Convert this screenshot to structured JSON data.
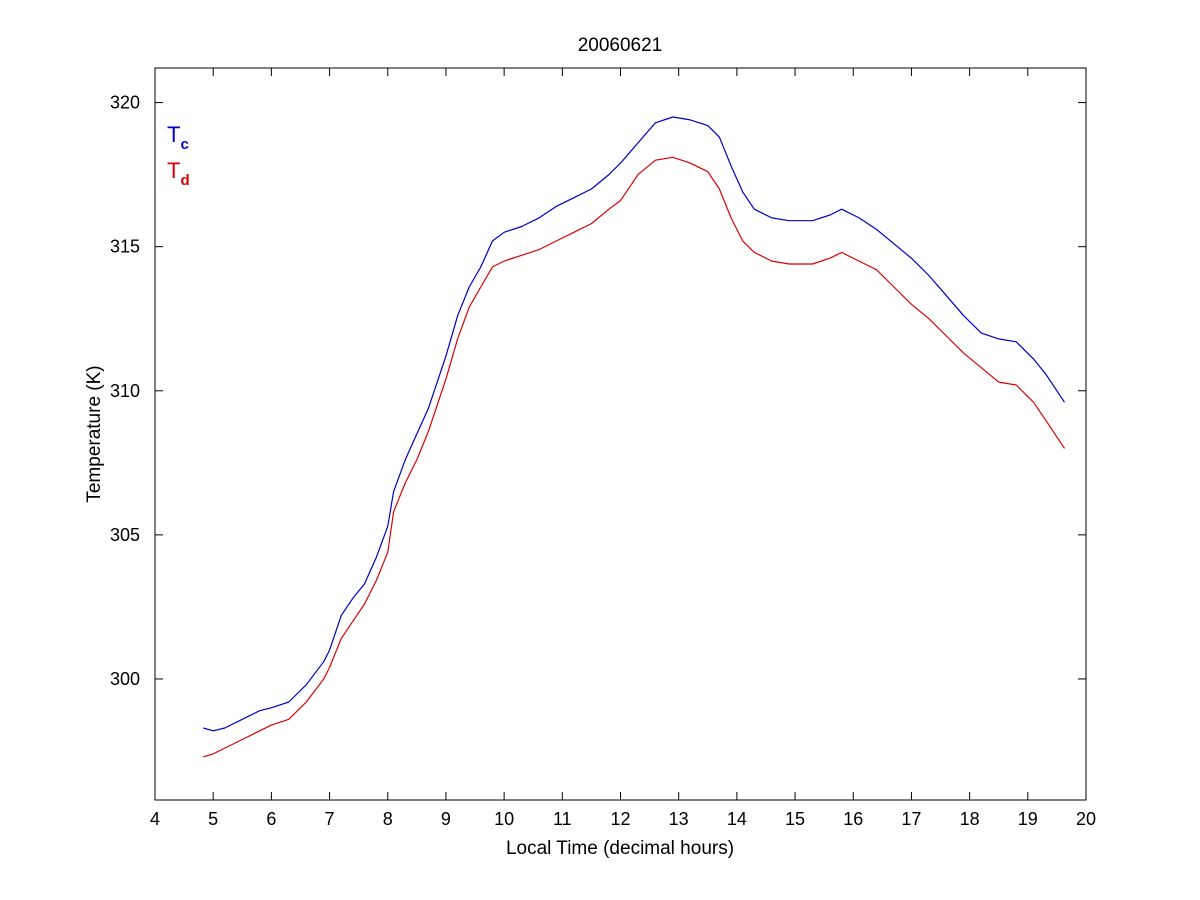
{
  "chart_data": {
    "type": "line",
    "title": "20060621",
    "xlabel": "Local Time (decimal hours)",
    "ylabel": "Temperature (K)",
    "xlim": [
      4,
      20
    ],
    "ylim": [
      295.8,
      321.2
    ],
    "xticks": [
      "4",
      "5",
      "6",
      "7",
      "8",
      "9",
      "10",
      "11",
      "12",
      "13",
      "14",
      "15",
      "16",
      "17",
      "18",
      "19",
      "20"
    ],
    "yticks": [
      "300",
      "305",
      "310",
      "315",
      "320"
    ],
    "grid": false,
    "legend_placement": "top-left",
    "series": [
      {
        "name_base": "T",
        "name_sub": "c",
        "color": "#0000c8",
        "x": [
          4.83,
          5.0,
          5.2,
          5.5,
          5.8,
          6.0,
          6.3,
          6.6,
          6.9,
          7.0,
          7.2,
          7.4,
          7.6,
          7.8,
          8.0,
          8.1,
          8.3,
          8.5,
          8.7,
          9.0,
          9.2,
          9.4,
          9.6,
          9.8,
          10.0,
          10.3,
          10.6,
          10.9,
          11.2,
          11.5,
          11.8,
          12.0,
          12.3,
          12.6,
          12.9,
          13.2,
          13.5,
          13.7,
          13.9,
          14.1,
          14.3,
          14.6,
          14.9,
          15.3,
          15.6,
          15.8,
          16.1,
          16.4,
          16.7,
          17.0,
          17.3,
          17.6,
          17.9,
          18.2,
          18.5,
          18.8,
          19.1,
          19.3,
          19.5,
          19.63
        ],
        "y": [
          298.3,
          298.2,
          298.3,
          298.6,
          298.9,
          299.0,
          299.2,
          299.8,
          300.6,
          301.0,
          302.2,
          302.8,
          303.3,
          304.2,
          305.3,
          306.5,
          307.6,
          308.5,
          309.4,
          311.2,
          312.6,
          313.6,
          314.3,
          315.2,
          315.5,
          315.7,
          316.0,
          316.4,
          316.7,
          317.0,
          317.5,
          317.9,
          318.6,
          319.3,
          319.5,
          319.4,
          319.2,
          318.8,
          317.8,
          316.9,
          316.3,
          316.0,
          315.9,
          315.9,
          316.1,
          316.3,
          316.0,
          315.6,
          315.1,
          314.6,
          314.0,
          313.3,
          312.6,
          312.0,
          311.8,
          311.7,
          311.1,
          310.6,
          310.0,
          309.6
        ]
      },
      {
        "name_base": "T",
        "name_sub": "d",
        "color": "#dd0000",
        "x": [
          4.83,
          5.0,
          5.2,
          5.5,
          5.8,
          6.0,
          6.3,
          6.6,
          6.9,
          7.0,
          7.2,
          7.4,
          7.6,
          7.8,
          8.0,
          8.1,
          8.3,
          8.5,
          8.7,
          9.0,
          9.2,
          9.4,
          9.6,
          9.8,
          10.0,
          10.3,
          10.6,
          10.9,
          11.2,
          11.5,
          11.8,
          12.0,
          12.3,
          12.6,
          12.9,
          13.2,
          13.5,
          13.7,
          13.9,
          14.1,
          14.3,
          14.6,
          14.9,
          15.3,
          15.6,
          15.8,
          16.1,
          16.4,
          16.7,
          17.0,
          17.3,
          17.6,
          17.9,
          18.2,
          18.5,
          18.8,
          19.1,
          19.3,
          19.5,
          19.63
        ],
        "y": [
          297.3,
          297.4,
          297.6,
          297.9,
          298.2,
          298.4,
          298.6,
          299.2,
          300.0,
          300.4,
          301.4,
          302.0,
          302.6,
          303.4,
          304.4,
          305.8,
          306.8,
          307.6,
          308.6,
          310.4,
          311.8,
          312.9,
          313.6,
          314.3,
          314.5,
          314.7,
          314.9,
          315.2,
          315.5,
          315.8,
          316.3,
          316.6,
          317.5,
          318.0,
          318.1,
          317.9,
          317.6,
          317.0,
          316.0,
          315.2,
          314.8,
          314.5,
          314.4,
          314.4,
          314.6,
          314.8,
          314.5,
          314.2,
          313.6,
          313.0,
          312.5,
          311.9,
          311.3,
          310.8,
          310.3,
          310.2,
          309.6,
          309.0,
          308.4,
          308.0
        ]
      }
    ]
  }
}
